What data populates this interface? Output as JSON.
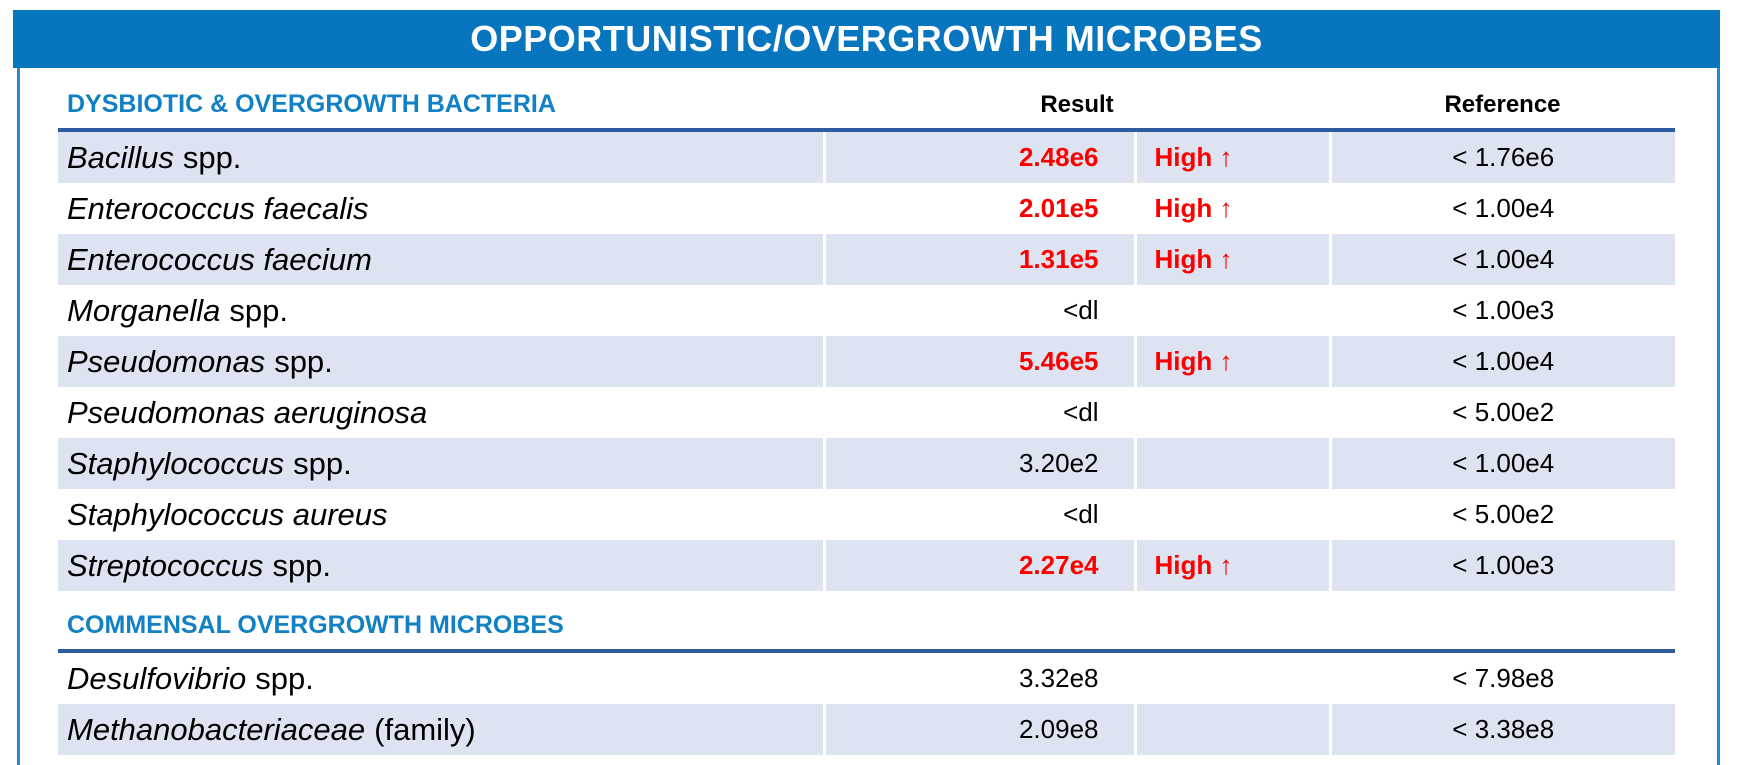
{
  "title": "OPPORTUNISTIC/OVERGROWTH MICROBES",
  "columns": {
    "result": "Result",
    "reference": "Reference"
  },
  "colors": {
    "banner_blue": "#0776be",
    "section_title_blue": "#1180c4",
    "underline_navy": "#2b5d9f",
    "row_shade": "#dde3f1",
    "high_red": "#fc0000",
    "edge_border_blue": "#2e86c8"
  },
  "sections": [
    {
      "title": "DYSBIOTIC & OVERGROWTH BACTERIA",
      "rows": [
        {
          "name_italic": "Bacillus",
          "name_regular": "spp.",
          "result": "2.48e6",
          "flag": "High ↑",
          "status": "high",
          "reference": "< 1.76e6"
        },
        {
          "name_italic": "Enterococcus faecalis",
          "name_regular": "",
          "result": "2.01e5",
          "flag": "High ↑",
          "status": "high",
          "reference": "< 1.00e4"
        },
        {
          "name_italic": "Enterococcus faecium",
          "name_regular": "",
          "result": "1.31e5",
          "flag": "High ↑",
          "status": "high",
          "reference": "< 1.00e4"
        },
        {
          "name_italic": "Morganella",
          "name_regular": "spp.",
          "result": "<dl",
          "flag": "",
          "status": "normal",
          "reference": "< 1.00e3"
        },
        {
          "name_italic": "Pseudomonas",
          "name_regular": "spp.",
          "result": "5.46e5",
          "flag": "High ↑",
          "status": "high",
          "reference": "< 1.00e4"
        },
        {
          "name_italic": "Pseudomonas aeruginosa",
          "name_regular": "",
          "result": "<dl",
          "flag": "",
          "status": "normal",
          "reference": "< 5.00e2"
        },
        {
          "name_italic": "Staphylococcus",
          "name_regular": "spp.",
          "result": "3.20e2",
          "flag": "",
          "status": "normal",
          "reference": "< 1.00e4"
        },
        {
          "name_italic": "Staphylococcus aureus",
          "name_regular": "",
          "result": "<dl",
          "flag": "",
          "status": "normal",
          "reference": "< 5.00e2"
        },
        {
          "name_italic": "Streptococcus",
          "name_regular": "spp.",
          "result": "2.27e4",
          "flag": "High ↑",
          "status": "high",
          "reference": "< 1.00e3"
        }
      ]
    },
    {
      "title": "COMMENSAL OVERGROWTH MICROBES",
      "rows": [
        {
          "name_italic": "Desulfovibrio",
          "name_regular": "spp.",
          "result": "3.32e8",
          "flag": "",
          "status": "normal",
          "reference": "< 7.98e8"
        },
        {
          "name_italic": "Methanobacteriaceae",
          "name_regular": "(family)",
          "result": "2.09e8",
          "flag": "",
          "status": "normal",
          "reference": "< 3.38e8"
        }
      ]
    }
  ]
}
